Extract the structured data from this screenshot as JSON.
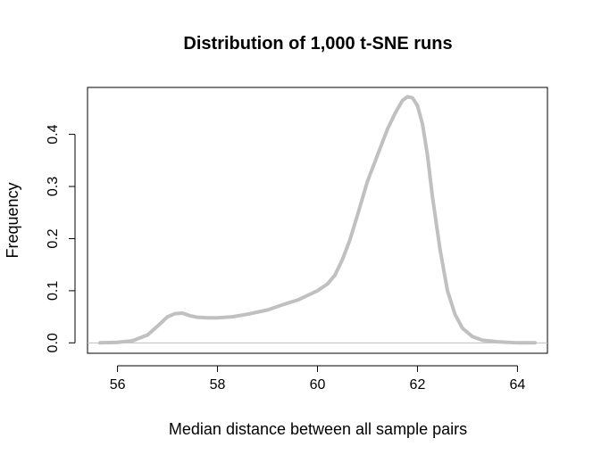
{
  "chart_data": {
    "type": "line",
    "title": "Distribution of 1,000 t-SNE runs",
    "xlabel": "Median distance between all sample pairs",
    "ylabel": "Frequency",
    "xlim": [
      55.4,
      64.6
    ],
    "ylim": [
      -0.02,
      0.49
    ],
    "x_ticks": [
      56,
      58,
      60,
      62,
      64
    ],
    "y_ticks": [
      0.0,
      0.1,
      0.2,
      0.3,
      0.4
    ],
    "x_tick_labels": [
      "56",
      "58",
      "60",
      "62",
      "64"
    ],
    "y_tick_labels": [
      "0.0",
      "0.1",
      "0.2",
      "0.3",
      "0.4"
    ],
    "grid": false,
    "baseline": 0,
    "series": [
      {
        "line_color": "#c0c0c0",
        "baseline_color": "#c0c0c0",
        "x": [
          55.65,
          56.0,
          56.3,
          56.6,
          56.8,
          57.0,
          57.15,
          57.3,
          57.45,
          57.6,
          57.8,
          58.0,
          58.3,
          58.6,
          59.0,
          59.3,
          59.6,
          60.0,
          60.2,
          60.35,
          60.5,
          60.65,
          60.8,
          61.0,
          61.2,
          61.4,
          61.55,
          61.7,
          61.8,
          61.9,
          62.0,
          62.1,
          62.2,
          62.3,
          62.45,
          62.6,
          62.75,
          62.9,
          63.1,
          63.3,
          63.6,
          64.0,
          64.35
        ],
        "y": [
          0.0,
          0.001,
          0.004,
          0.015,
          0.032,
          0.05,
          0.056,
          0.057,
          0.052,
          0.049,
          0.048,
          0.048,
          0.05,
          0.055,
          0.063,
          0.073,
          0.082,
          0.1,
          0.113,
          0.13,
          0.16,
          0.198,
          0.245,
          0.31,
          0.36,
          0.41,
          0.44,
          0.465,
          0.472,
          0.47,
          0.455,
          0.42,
          0.36,
          0.28,
          0.18,
          0.1,
          0.055,
          0.028,
          0.012,
          0.005,
          0.002,
          0.0,
          0.0
        ]
      }
    ]
  }
}
